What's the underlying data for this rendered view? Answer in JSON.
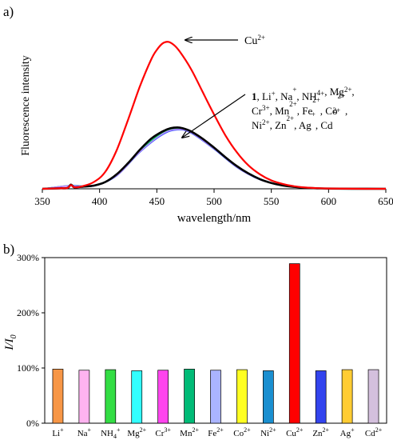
{
  "figure": {
    "panel_a_label": "a)",
    "panel_b_label": "b)"
  },
  "chart_data": [
    {
      "type": "line",
      "panel": "a)",
      "xlabel": "wavelength/nm",
      "ylabel": "Fluorescence  intensity",
      "xlim": [
        350,
        650
      ],
      "x_ticks": [
        350,
        400,
        450,
        500,
        550,
        600,
        650
      ],
      "y_ticks_labeled": false,
      "grid": false,
      "annotations": [
        {
          "text": "Cu",
          "sup": "2+"
        },
        {
          "lines": [
            [
              {
                "t": "1",
                "bold": true
              },
              {
                "t": ", Li"
              },
              {
                "t": "+",
                "sup": true
              },
              {
                "t": ", Na"
              },
              {
                "t": "+",
                "sup": true
              },
              {
                "t": ", NH"
              },
              {
                "t": "4",
                "sub": true
              },
              {
                "t": "+",
                "sup": true
              },
              {
                "t": ", Mg"
              },
              {
                "t": "2+",
                "sup": true
              },
              {
                "t": ","
              }
            ],
            [
              {
                "t": "Cr"
              },
              {
                "t": "3+",
                "sup": true
              },
              {
                "t": ", Mn"
              },
              {
                "t": "2+",
                "sup": true
              },
              {
                "t": ", Fe"
              },
              {
                "t": "2+",
                "sup": true
              },
              {
                "t": ", Co"
              },
              {
                "t": "2+",
                "sup": true
              },
              {
                "t": ","
              }
            ],
            [
              {
                "t": "Ni"
              },
              {
                "t": "2+",
                "sup": true
              },
              {
                "t": ", Zn"
              },
              {
                "t": "2+",
                "sup": true
              },
              {
                "t": ", Ag"
              },
              {
                "t": "+",
                "sup": true
              },
              {
                "t": ", Cd"
              },
              {
                "t": "2+",
                "sup": true
              }
            ]
          ]
        }
      ],
      "series": [
        {
          "color": "#ff0000",
          "x": [
            350,
            365,
            372,
            375,
            378,
            385,
            395,
            405,
            415,
            425,
            435,
            445,
            450,
            455,
            460,
            465,
            470,
            480,
            490,
            500,
            510,
            520,
            530,
            540,
            550,
            560,
            570,
            580,
            590,
            600,
            620,
            650
          ],
          "y": [
            0,
            0.3,
            0.5,
            2.4,
            0.9,
            1.6,
            4.2,
            10.5,
            24,
            43,
            63,
            80,
            86,
            90,
            91,
            89,
            85,
            74,
            60,
            46,
            33,
            22.5,
            14.5,
            9,
            5.2,
            3,
            1.6,
            0.8,
            0.4,
            0.2,
            0.05,
            0
          ]
        },
        {
          "color": "#000000",
          "x": [
            350,
            365,
            372,
            375,
            378,
            385,
            395,
            405,
            415,
            425,
            435,
            445,
            455,
            462,
            468,
            472,
            480,
            490,
            500,
            510,
            520,
            530,
            540,
            550,
            560,
            570,
            580,
            590,
            600,
            620,
            650
          ],
          "y": [
            0,
            0.3,
            0.5,
            2.6,
            0.9,
            1.3,
            2,
            4.2,
            9,
            16,
            24,
            31,
            35.5,
            37.5,
            38,
            37.6,
            35.5,
            31,
            25.5,
            19.5,
            14,
            9.5,
            6,
            3.6,
            2.1,
            1.2,
            0.6,
            0.3,
            0.15,
            0.05,
            0
          ]
        },
        {
          "color": "#ff66cc",
          "x": [
            350,
            375,
            395,
            415,
            435,
            455,
            468,
            480,
            500,
            520,
            540,
            560,
            580,
            600,
            650
          ],
          "y": [
            0,
            1.8,
            1.8,
            8.5,
            23,
            34,
            37,
            35,
            25,
            13.5,
            5.8,
            2,
            0.6,
            0.15,
            0
          ]
        },
        {
          "color": "#3355ff",
          "x": [
            350,
            375,
            395,
            415,
            435,
            455,
            468,
            480,
            500,
            520,
            540,
            560,
            580,
            600,
            650
          ],
          "y": [
            0,
            2,
            1.7,
            8,
            22.5,
            33.5,
            36.5,
            34.5,
            24.5,
            13.2,
            5.6,
            2,
            0.6,
            0.15,
            0
          ]
        },
        {
          "color": "#00cc66",
          "x": [
            350,
            375,
            395,
            415,
            435,
            455,
            468,
            480,
            500,
            520,
            540,
            560,
            580,
            600,
            650
          ],
          "y": [
            0,
            2.2,
            1.9,
            8.6,
            23.5,
            34.8,
            37.5,
            35.3,
            25.2,
            13.6,
            5.8,
            2.1,
            0.6,
            0.15,
            0
          ]
        },
        {
          "color": "#bb88ff",
          "x": [
            350,
            375,
            395,
            415,
            435,
            455,
            468,
            480,
            500,
            520,
            540,
            560,
            580,
            600,
            650
          ],
          "y": [
            0,
            2.1,
            1.8,
            8.2,
            22.8,
            34,
            36.8,
            34.8,
            24.8,
            13.4,
            5.7,
            2,
            0.6,
            0.15,
            0
          ]
        }
      ]
    },
    {
      "type": "bar",
      "panel": "b)",
      "ylabel": "I/I0",
      "ylim": [
        0,
        300
      ],
      "y_ticks": [
        "0%",
        "100%",
        "200%",
        "300%"
      ],
      "grid": false,
      "categories": [
        {
          "base": "Li",
          "sup": "+"
        },
        {
          "base": "Na",
          "sup": "+"
        },
        {
          "base": "NH",
          "sub": "4",
          "sup": "+"
        },
        {
          "base": "Mg",
          "sup": "2+"
        },
        {
          "base": "Cr",
          "sup": "3+"
        },
        {
          "base": "Mn",
          "sup": "2+"
        },
        {
          "base": "Fe",
          "sup": "2+"
        },
        {
          "base": "Co",
          "sup": "2+"
        },
        {
          "base": "Ni",
          "sup": "2+"
        },
        {
          "base": "Cu",
          "sup": "2+"
        },
        {
          "base": "Zn",
          "sup": "2+"
        },
        {
          "base": "Ag",
          "sup": "+"
        },
        {
          "base": "Cd",
          "sup": "2+"
        }
      ],
      "values": [
        98,
        96,
        97,
        95,
        96,
        98,
        96,
        97,
        95,
        289,
        95,
        97,
        97
      ],
      "colors": [
        "#f79646",
        "#ffb3f0",
        "#33dd44",
        "#33ffff",
        "#ff44ee",
        "#00bb77",
        "#aab4ff",
        "#ffff22",
        "#1a8fd0",
        "#ff0000",
        "#3344ee",
        "#ffcc33",
        "#d4c0dd"
      ]
    }
  ]
}
